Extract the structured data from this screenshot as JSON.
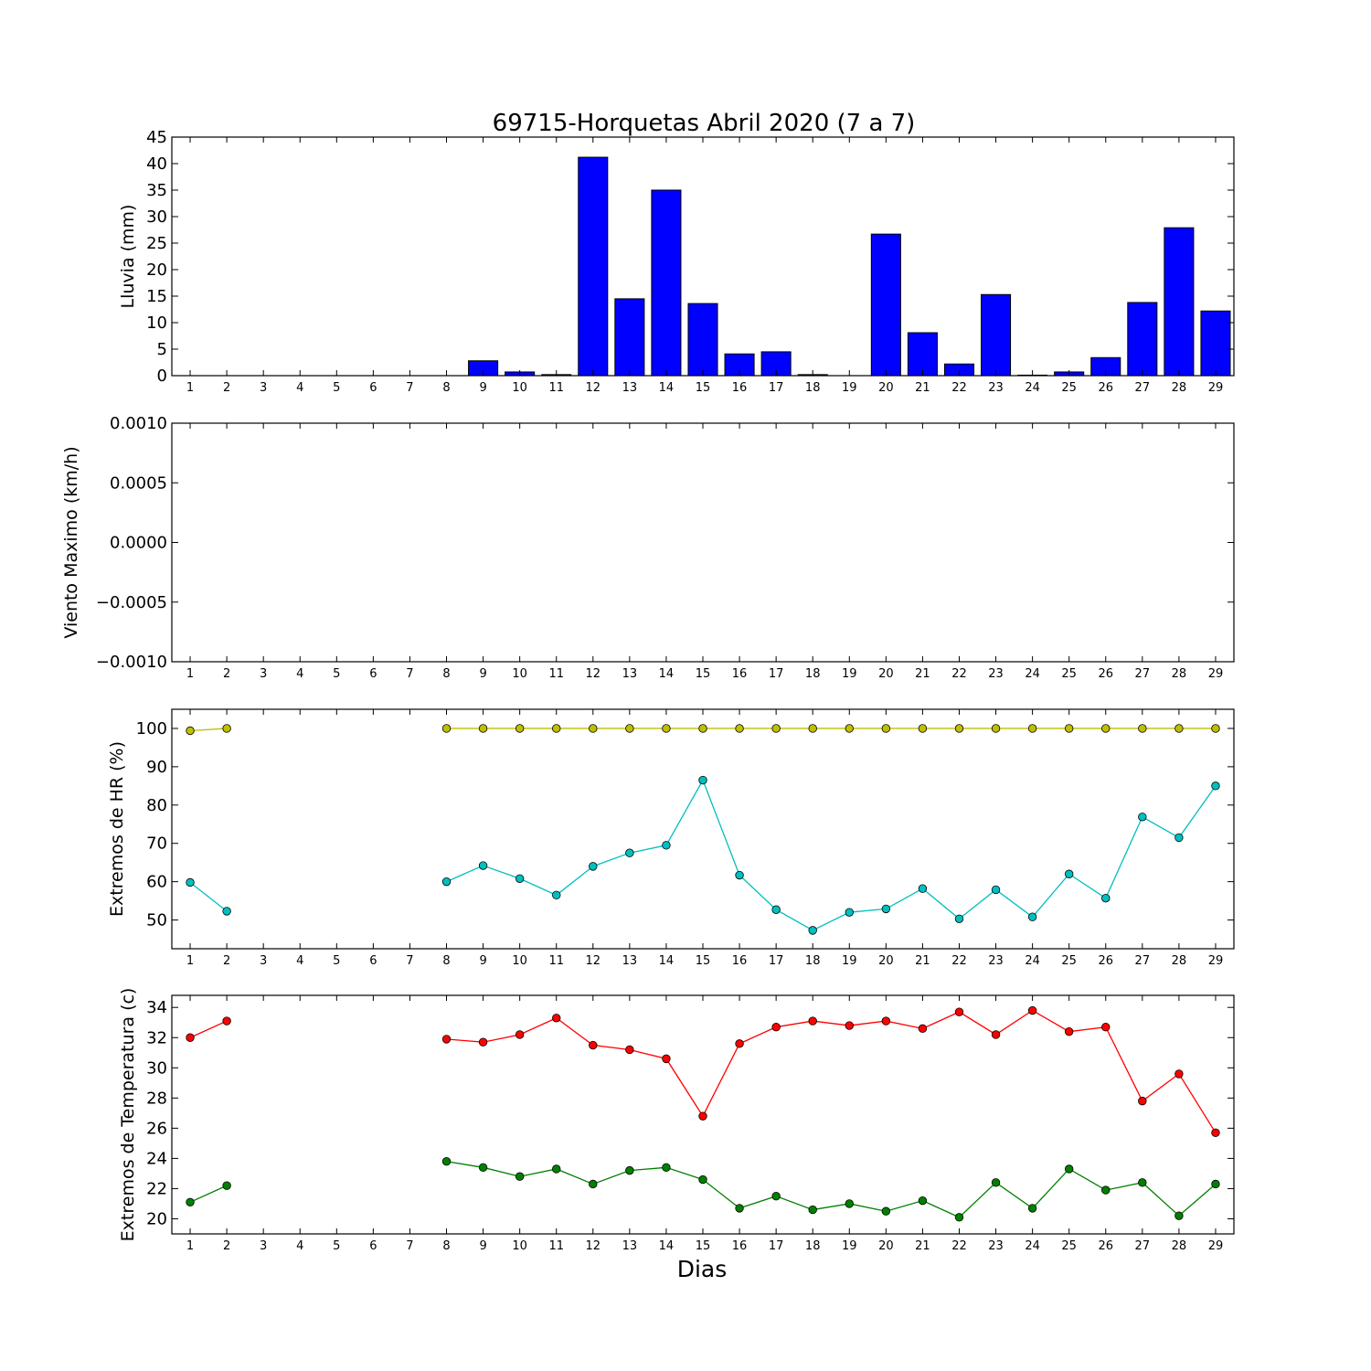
{
  "title": "69715-Horquetas Abril 2020  (7 a 7)",
  "xlabel": "Dias",
  "colors": {
    "rain_bar": "#0000ff",
    "hr_max": "#bfbf00",
    "hr_min": "#00bfbf",
    "temp_max": "#ff0000",
    "temp_min": "#008000"
  },
  "chart_data": [
    {
      "type": "bar",
      "ylabel": "Lluvia (mm)",
      "ylim": [
        0,
        45
      ],
      "yticks": [
        "0",
        "5",
        "10",
        "15",
        "20",
        "25",
        "30",
        "35",
        "40",
        "45"
      ],
      "categories": [
        "1",
        "2",
        "3",
        "4",
        "5",
        "6",
        "7",
        "8",
        "9",
        "10",
        "11",
        "12",
        "13",
        "14",
        "15",
        "16",
        "17",
        "18",
        "19",
        "20",
        "21",
        "22",
        "23",
        "24",
        "25",
        "26",
        "27",
        "28",
        "29"
      ],
      "values": [
        0,
        0,
        0,
        0,
        0,
        0,
        0,
        0,
        2.8,
        0.7,
        0.2,
        41.2,
        14.5,
        35.0,
        13.6,
        4.1,
        4.5,
        0.2,
        0,
        26.7,
        8.1,
        2.2,
        15.3,
        0.1,
        0.7,
        3.4,
        13.8,
        27.9,
        12.2
      ],
      "grid": false
    },
    {
      "type": "line",
      "ylabel": "Viento Maximo (km/h)",
      "ylim": [
        -0.001,
        0.001
      ],
      "yticks": [
        "−0.0010",
        "−0.0005",
        "0.0000",
        "0.0005",
        "0.0010"
      ],
      "categories": [
        "1",
        "2",
        "3",
        "4",
        "5",
        "6",
        "7",
        "8",
        "9",
        "10",
        "11",
        "12",
        "13",
        "14",
        "15",
        "16",
        "17",
        "18",
        "19",
        "20",
        "21",
        "22",
        "23",
        "24",
        "25",
        "26",
        "27",
        "28",
        "29"
      ],
      "series": [],
      "grid": false
    },
    {
      "type": "line",
      "ylabel": "Extremos de HR (%)",
      "ylim": [
        42.5,
        105
      ],
      "yticks": [
        "50",
        "60",
        "70",
        "80",
        "90",
        "100"
      ],
      "categories": [
        "1",
        "2",
        "3",
        "4",
        "5",
        "6",
        "7",
        "8",
        "9",
        "10",
        "11",
        "12",
        "13",
        "14",
        "15",
        "16",
        "17",
        "18",
        "19",
        "20",
        "21",
        "22",
        "23",
        "24",
        "25",
        "26",
        "27",
        "28",
        "29"
      ],
      "series": [
        {
          "color_key": "hr_max",
          "values": [
            99.4,
            100,
            null,
            null,
            null,
            null,
            null,
            100,
            100,
            100,
            100,
            100,
            100,
            100,
            100,
            100,
            100,
            100,
            100,
            100,
            100,
            100,
            100,
            100,
            100,
            100,
            100,
            100,
            100
          ]
        },
        {
          "color_key": "hr_min",
          "values": [
            59.8,
            52.3,
            null,
            null,
            null,
            null,
            null,
            60.0,
            64.2,
            60.8,
            56.5,
            64.0,
            67.5,
            69.5,
            86.5,
            61.7,
            52.7,
            47.3,
            52.0,
            52.9,
            58.2,
            50.3,
            57.9,
            50.8,
            62.0,
            55.7,
            76.9,
            71.5,
            85.0
          ]
        }
      ],
      "grid": false
    },
    {
      "type": "line",
      "ylabel": "Extremos de Temperatura (c)",
      "ylim": [
        19,
        34.8
      ],
      "yticks": [
        "20",
        "22",
        "24",
        "26",
        "28",
        "30",
        "32",
        "34"
      ],
      "categories": [
        "1",
        "2",
        "3",
        "4",
        "5",
        "6",
        "7",
        "8",
        "9",
        "10",
        "11",
        "12",
        "13",
        "14",
        "15",
        "16",
        "17",
        "18",
        "19",
        "20",
        "21",
        "22",
        "23",
        "24",
        "25",
        "26",
        "27",
        "28",
        "29"
      ],
      "series": [
        {
          "color_key": "temp_max",
          "values": [
            32.0,
            33.1,
            null,
            null,
            null,
            null,
            null,
            31.9,
            31.7,
            32.2,
            33.3,
            31.5,
            31.2,
            30.6,
            26.8,
            31.6,
            32.7,
            33.1,
            32.8,
            33.1,
            32.6,
            33.7,
            32.2,
            33.8,
            32.4,
            32.7,
            27.8,
            29.6,
            25.7
          ]
        },
        {
          "color_key": "temp_min",
          "values": [
            21.1,
            22.2,
            null,
            null,
            null,
            null,
            null,
            23.8,
            23.4,
            22.8,
            23.3,
            22.3,
            23.2,
            23.4,
            22.6,
            20.7,
            21.5,
            20.6,
            21.0,
            20.5,
            21.2,
            20.1,
            22.4,
            20.7,
            23.3,
            21.9,
            22.4,
            20.2,
            22.3
          ]
        }
      ],
      "grid": false
    }
  ]
}
